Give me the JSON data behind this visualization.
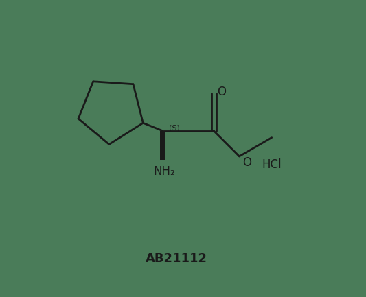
{
  "bg_color": "#4a7c59",
  "line_color": "#1a1a1a",
  "text_color": "#1a1a1a",
  "title_text": "AB21112",
  "hcl_text": "HCl",
  "nh2_text": "NH₂",
  "stereo_text": "(S)",
  "o_double_text": "O",
  "o_single_text": "O",
  "title_fontsize": 13,
  "label_fontsize": 11,
  "line_width": 2.0,
  "figsize": [
    5.33,
    4.33
  ],
  "dpi": 100
}
